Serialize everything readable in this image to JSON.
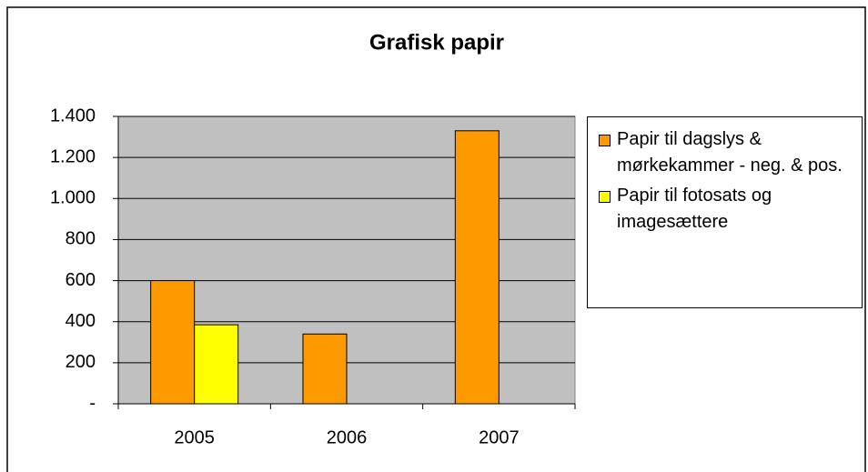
{
  "chart_data": {
    "type": "bar",
    "title": "Grafisk papir",
    "categories": [
      "2005",
      "2006",
      "2007"
    ],
    "series": [
      {
        "name": "Papir til dagslys & mørkekammer - neg. & pos.",
        "color": "#ff9900",
        "values": [
          600,
          340,
          1330
        ]
      },
      {
        "name": "Papir til fotosats og imagesættere",
        "color": "#ffff00",
        "values": [
          385,
          null,
          null
        ]
      }
    ],
    "ylim": [
      0,
      1400
    ],
    "yticks": [
      {
        "value": 0,
        "label": "-"
      },
      200,
      400,
      600,
      800,
      {
        "value": 1000,
        "label": "1.000"
      },
      {
        "value": 1200,
        "label": "1.200"
      },
      {
        "value": 1400,
        "label": "1.400"
      }
    ],
    "grid": true,
    "legend": "right"
  }
}
